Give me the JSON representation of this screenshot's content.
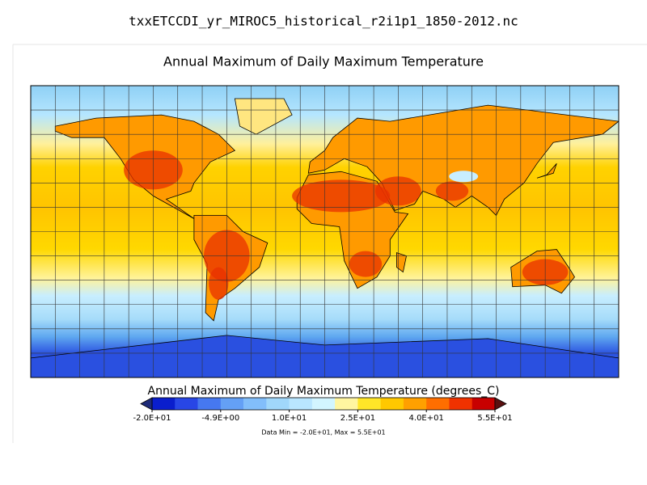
{
  "header": {
    "filename": "txxETCCDI_yr_MIROC5_historical_r2i1p1_1850-2012.nc"
  },
  "map": {
    "title": "Annual Maximum of Daily Maximum Temperature"
  },
  "colorbar": {
    "label": "Annual Maximum of Daily Maximum Temperature (degrees_C)",
    "ticks": [
      "-2.0E+01",
      "-4.9E+00",
      "1.0E+01",
      "2.5E+01",
      "4.0E+01",
      "5.5E+01"
    ],
    "colors": [
      "#0a1ecd",
      "#2846e6",
      "#4678f0",
      "#64a0f5",
      "#82befa",
      "#a0d7fa",
      "#b9e6ff",
      "#d2f5ff",
      "#fff5a0",
      "#ffe628",
      "#ffc800",
      "#ffa000",
      "#ff6e00",
      "#f03200",
      "#c80000"
    ],
    "under_color": "#1e2a78",
    "over_color": "#5a1010"
  },
  "note": "Data Min = -2.0E+01, Max = 5.5E+01"
}
